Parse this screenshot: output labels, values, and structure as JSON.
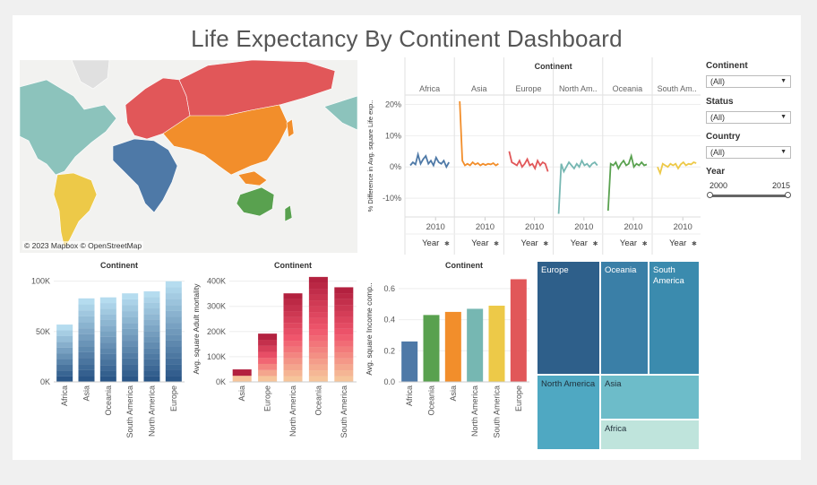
{
  "title": "Life Expectancy By Continent Dashboard",
  "map": {
    "credit": "© 2023 Mapbox © OpenStreetMap"
  },
  "filters": {
    "continent": {
      "label": "Continent",
      "value": "(All)"
    },
    "status": {
      "label": "Status",
      "value": "(All)"
    },
    "country": {
      "label": "Country",
      "value": "(All)"
    },
    "year": {
      "label": "Year",
      "min": "2000",
      "max": "2015"
    }
  },
  "colors": {
    "Africa": "#4e79a7",
    "Asia": "#f28e2b",
    "Europe": "#e15759",
    "North America": "#76b7b2",
    "Oceania": "#59a14f",
    "South America": "#edc948"
  },
  "chart_data": [
    {
      "id": "line",
      "type": "line",
      "title": "Continent",
      "ylabel": "% Difference in Avg. square Life exp..",
      "xlabel": "Year",
      "xtick": "2010",
      "yticks": [
        "20%",
        "10%",
        "0%",
        "-10%"
      ],
      "ylim": [
        -16,
        23
      ],
      "panels": [
        {
          "name": "Africa",
          "values": [
            0.5,
            1.5,
            0.8,
            4.0,
            1.0,
            2.5,
            3.5,
            1.0,
            2.0,
            0.5,
            3.0,
            1.5,
            1.0,
            2.0,
            0.0,
            1.5
          ]
        },
        {
          "name": "Asia",
          "values": [
            21.0,
            2.0,
            0.5,
            1.0,
            0.5,
            1.5,
            0.8,
            1.2,
            0.5,
            1.0,
            0.6,
            1.0,
            0.8,
            1.2,
            0.5,
            1.0
          ]
        },
        {
          "name": "Europe",
          "values": [
            5.0,
            1.5,
            1.0,
            0.5,
            2.0,
            0.0,
            1.0,
            2.5,
            0.5,
            1.0,
            -0.5,
            2.0,
            0.5,
            1.5,
            1.0,
            -1.5
          ]
        },
        {
          "name": "North Am..",
          "values": [
            -15.0,
            1.0,
            -1.5,
            0.0,
            1.5,
            0.5,
            -0.5,
            1.0,
            0.0,
            2.0,
            0.5,
            1.0,
            0.0,
            1.0,
            1.5,
            0.5
          ]
        },
        {
          "name": "Oceania",
          "values": [
            -14.0,
            1.0,
            0.5,
            1.5,
            -0.5,
            1.0,
            2.0,
            0.5,
            1.0,
            3.5,
            0.0,
            1.0,
            0.5,
            1.5,
            0.5,
            0.8
          ]
        },
        {
          "name": "South Am..",
          "values": [
            0.0,
            -2.0,
            1.0,
            0.5,
            0.0,
            1.0,
            0.5,
            1.0,
            -0.5,
            0.8,
            1.5,
            0.5,
            1.0,
            0.8,
            1.5,
            1.2
          ]
        }
      ]
    },
    {
      "id": "bar1",
      "type": "bar",
      "title": "Continent",
      "ylabel": "",
      "categories": [
        "Africa",
        "Asia",
        "Oceania",
        "South America",
        "North America",
        "Europe"
      ],
      "values": [
        57000,
        83000,
        84000,
        88000,
        90000,
        100000
      ],
      "ylim": [
        0,
        105000
      ],
      "yticks": [
        "0K",
        "50K",
        "100K"
      ]
    },
    {
      "id": "bar2",
      "type": "bar",
      "title": "Continent",
      "ylabel": "Avg. square Adult mortality",
      "categories": [
        "Asia",
        "Europe",
        "North America",
        "Oceania",
        "South America"
      ],
      "values": [
        50000,
        192000,
        352000,
        417000,
        376000
      ],
      "ylim": [
        0,
        420000
      ],
      "yticks": [
        "0K",
        "100K",
        "200K",
        "300K",
        "400K"
      ]
    },
    {
      "id": "bar3",
      "type": "bar",
      "title": "Continent",
      "ylabel": "Avg. square Income comp..",
      "categories": [
        "Africa",
        "Oceania",
        "Asia",
        "North America",
        "South America",
        "Europe"
      ],
      "values": [
        0.26,
        0.43,
        0.45,
        0.47,
        0.49,
        0.66
      ],
      "ylim": [
        0,
        0.68
      ],
      "yticks": [
        "0.0",
        "0.2",
        "0.4",
        "0.6"
      ]
    },
    {
      "id": "treemap",
      "type": "treemap",
      "cells": [
        {
          "label": "Europe",
          "color": "#2e5f8a"
        },
        {
          "label": "Oceania",
          "color": "#3a7fa7"
        },
        {
          "label": "South America",
          "color": "#3b8bae"
        },
        {
          "label": "North America",
          "color": "#4fa8c2"
        },
        {
          "label": "Asia",
          "color": "#6dbcc9"
        },
        {
          "label": "Africa",
          "color": "#bfe4dc"
        }
      ]
    }
  ]
}
